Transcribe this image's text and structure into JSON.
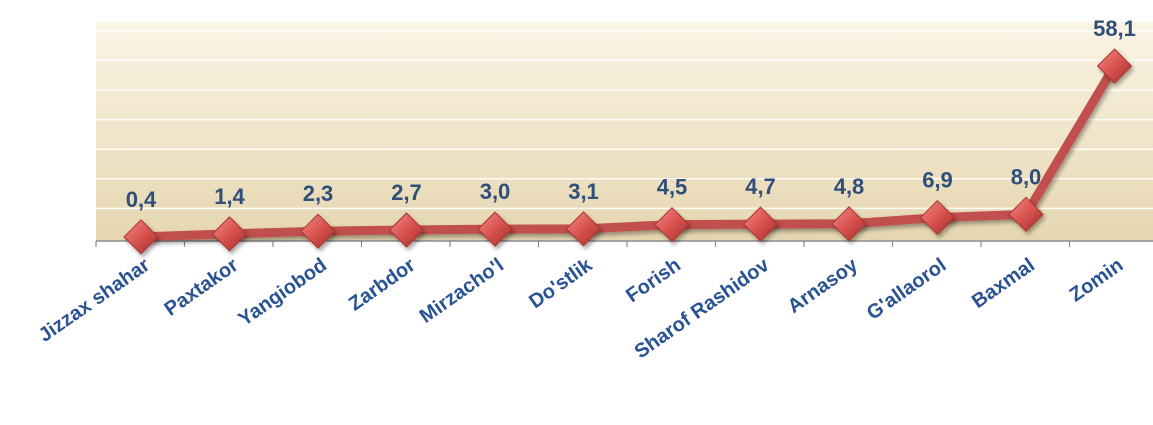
{
  "chart_data": {
    "type": "line",
    "categories": [
      "Jizzax shahar",
      "Paxtakor",
      "Yangiobod",
      "Zarbdor",
      "Mirzacho'l",
      "Do'stlik",
      "Forish",
      "Sharof Rashidov",
      "Arnasoy",
      "G'allaorol",
      "Baxmal",
      "Zomin"
    ],
    "values": [
      0.4,
      1.4,
      2.3,
      2.7,
      3.0,
      3.1,
      4.5,
      4.7,
      4.8,
      6.9,
      8.0,
      58.1
    ],
    "value_labels": [
      "0,4",
      "1,4",
      "2,3",
      "2,7",
      "3,0",
      "3,1",
      "4,5",
      "4,7",
      "4,8",
      "6,9",
      "8,0",
      "58,1"
    ],
    "ylim": [
      0,
      70
    ],
    "grid": true,
    "colors": {
      "line": "#c0504d",
      "marker": "#d9534f",
      "plot_bg_top": "#fbf5e6",
      "plot_bg_bottom": "#e6d6b0",
      "value_label": "#2f4f7a",
      "category_label": "#2a5393"
    }
  }
}
